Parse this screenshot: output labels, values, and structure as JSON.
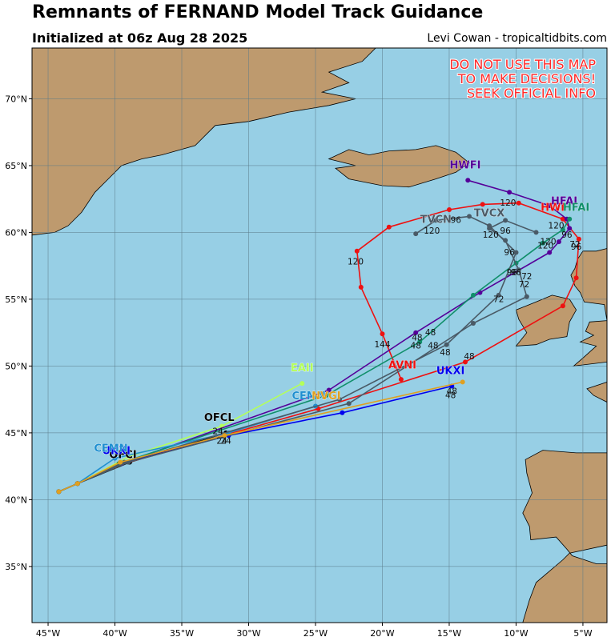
{
  "header": {
    "title": "Remnants of FERNAND Model Track Guidance",
    "subtitle": "Initialized at 06z Aug 28 2025",
    "credit": "Levi Cowan - tropicaltidbits.com"
  },
  "warning": {
    "lines": [
      "DO NOT USE THIS MAP",
      "TO MAKE DECISIONS!",
      "SEEK OFFICIAL INFO"
    ],
    "color": "#ff2a2a"
  },
  "colors": {
    "ocean": "#97cfe5",
    "land": "#be9a6e",
    "grid": "#5a7a88"
  },
  "chart_data": {
    "type": "map",
    "xlim": [
      -46.2,
      -3.2
    ],
    "ylim": [
      30.8,
      73.8
    ],
    "lon_ticks": [
      {
        "v": -45,
        "label": "45°W"
      },
      {
        "v": -40,
        "label": "40°W"
      },
      {
        "v": -35,
        "label": "35°W"
      },
      {
        "v": -30,
        "label": "30°W"
      },
      {
        "v": -25,
        "label": "25°W"
      },
      {
        "v": -20,
        "label": "20°W"
      },
      {
        "v": -15,
        "label": "15°W"
      },
      {
        "v": -10,
        "label": "10°W"
      },
      {
        "v": -5,
        "label": "5°W"
      }
    ],
    "lat_ticks": [
      {
        "v": 35,
        "label": "35°N"
      },
      {
        "v": 40,
        "label": "40°N"
      },
      {
        "v": 45,
        "label": "45°N"
      },
      {
        "v": 50,
        "label": "50°N"
      },
      {
        "v": 55,
        "label": "55°N"
      },
      {
        "v": 60,
        "label": "60°N"
      },
      {
        "v": 65,
        "label": "65°N"
      },
      {
        "v": 70,
        "label": "70°N"
      }
    ],
    "land": [
      {
        "name": "greenland",
        "points": [
          [
            -46.2,
            73.8
          ],
          [
            -20.5,
            73.8
          ],
          [
            -21.5,
            72.8
          ],
          [
            -24.0,
            72.0
          ],
          [
            -22.5,
            71.2
          ],
          [
            -24.5,
            70.5
          ],
          [
            -22.0,
            70.0
          ],
          [
            -24.0,
            69.5
          ],
          [
            -27.0,
            69.0
          ],
          [
            -30.0,
            68.3
          ],
          [
            -32.5,
            68.0
          ],
          [
            -34.0,
            66.5
          ],
          [
            -36.5,
            65.8
          ],
          [
            -38.0,
            65.5
          ],
          [
            -39.5,
            65.0
          ],
          [
            -40.5,
            64.0
          ],
          [
            -41.5,
            63.0
          ],
          [
            -42.5,
            61.5
          ],
          [
            -43.5,
            60.5
          ],
          [
            -44.5,
            60.0
          ],
          [
            -46.2,
            59.8
          ]
        ]
      },
      {
        "name": "iceland",
        "points": [
          [
            -24.0,
            65.5
          ],
          [
            -22.5,
            66.2
          ],
          [
            -21.0,
            65.8
          ],
          [
            -19.5,
            66.1
          ],
          [
            -17.5,
            66.2
          ],
          [
            -16.0,
            66.5
          ],
          [
            -14.5,
            66.0
          ],
          [
            -13.5,
            65.2
          ],
          [
            -14.5,
            64.5
          ],
          [
            -16.0,
            64.0
          ],
          [
            -18.0,
            63.4
          ],
          [
            -20.0,
            63.5
          ],
          [
            -21.5,
            63.8
          ],
          [
            -22.5,
            64.0
          ],
          [
            -23.5,
            64.8
          ],
          [
            -22.0,
            65.0
          ]
        ]
      },
      {
        "name": "ireland",
        "points": [
          [
            -10.0,
            51.5
          ],
          [
            -9.2,
            52.5
          ],
          [
            -9.8,
            53.5
          ],
          [
            -10.0,
            54.2
          ],
          [
            -8.5,
            54.8
          ],
          [
            -7.3,
            55.3
          ],
          [
            -6.0,
            55.0
          ],
          [
            -5.5,
            54.2
          ],
          [
            -6.0,
            53.3
          ],
          [
            -6.2,
            52.2
          ],
          [
            -7.5,
            52.0
          ],
          [
            -8.5,
            51.6
          ]
        ]
      },
      {
        "name": "britain",
        "points": [
          [
            -5.7,
            50.0
          ],
          [
            -3.2,
            50.3
          ],
          [
            -3.2,
            58.8
          ],
          [
            -4.0,
            58.6
          ],
          [
            -5.0,
            58.6
          ],
          [
            -5.4,
            58.0
          ],
          [
            -5.6,
            57.3
          ],
          [
            -5.9,
            56.8
          ],
          [
            -5.6,
            56.0
          ],
          [
            -5.2,
            55.5
          ],
          [
            -4.9,
            54.8
          ],
          [
            -3.4,
            54.6
          ],
          [
            -3.2,
            53.4
          ],
          [
            -4.5,
            53.3
          ],
          [
            -4.8,
            52.6
          ],
          [
            -4.2,
            52.3
          ],
          [
            -5.2,
            51.8
          ],
          [
            -4.0,
            51.5
          ],
          [
            -5.0,
            50.6
          ]
        ]
      },
      {
        "name": "iberia",
        "points": [
          [
            -9.5,
            30.8
          ],
          [
            -9.0,
            32.5
          ],
          [
            -8.5,
            33.8
          ],
          [
            -6.5,
            35.5
          ],
          [
            -6.0,
            36.0
          ],
          [
            -3.2,
            36.6
          ],
          [
            -3.2,
            43.5
          ],
          [
            -5.5,
            43.5
          ],
          [
            -8.0,
            43.7
          ],
          [
            -9.3,
            43.0
          ],
          [
            -9.2,
            42.0
          ],
          [
            -8.8,
            40.5
          ],
          [
            -9.5,
            39.0
          ],
          [
            -9.0,
            38.0
          ],
          [
            -8.9,
            37.0
          ],
          [
            -7.0,
            37.2
          ],
          [
            -6.2,
            36.3
          ],
          [
            -5.8,
            35.8
          ],
          [
            -4.0,
            35.2
          ],
          [
            -3.2,
            35.2
          ],
          [
            -3.2,
            30.8
          ]
        ]
      },
      {
        "name": "france",
        "points": [
          [
            -4.7,
            48.3
          ],
          [
            -3.2,
            48.8
          ],
          [
            -3.2,
            47.3
          ],
          [
            -4.2,
            47.8
          ]
        ]
      }
    ],
    "models": [
      {
        "name": "OFCL",
        "color": "#000000",
        "points": [
          [
            -44.2,
            40.6
          ],
          [
            -42.8,
            41.2
          ],
          [
            -38.9,
            42.8
          ],
          [
            -31.7,
            45.0
          ]
        ]
      },
      {
        "name": "AVNI",
        "color": "#ee1111",
        "points": [
          [
            -44.2,
            40.6
          ],
          [
            -42.8,
            41.2
          ],
          [
            -40.0,
            42.5
          ],
          [
            -24.8,
            46.8
          ],
          [
            -13.8,
            50.3
          ],
          [
            -6.5,
            54.5
          ],
          [
            -5.5,
            56.6
          ],
          [
            -5.3,
            59.5
          ],
          [
            -6.5,
            61.0
          ],
          [
            -9.8,
            62.2
          ],
          [
            -12.5,
            62.1
          ],
          [
            -15.0,
            61.7
          ],
          [
            -19.5,
            60.4
          ],
          [
            -21.9,
            58.6
          ],
          [
            -21.6,
            55.9
          ],
          [
            -20.0,
            52.4
          ],
          [
            -18.6,
            49.0
          ]
        ]
      },
      {
        "name": "UKXI",
        "color": "#0000ee",
        "points": [
          [
            -44.2,
            40.6
          ],
          [
            -42.8,
            41.2
          ],
          [
            -39.5,
            42.7
          ],
          [
            -31.5,
            44.8
          ],
          [
            -23.0,
            46.5
          ],
          [
            -14.8,
            48.5
          ]
        ]
      },
      {
        "name": "EAII",
        "color": "#b4ff5a",
        "points": [
          [
            -44.2,
            40.6
          ],
          [
            -42.8,
            41.2
          ],
          [
            -39.0,
            43.2
          ],
          [
            -32.0,
            45.5
          ],
          [
            -26.0,
            48.7
          ]
        ]
      },
      {
        "name": "HWFI",
        "color": "#550099",
        "points": [
          [
            -44.2,
            40.6
          ],
          [
            -42.8,
            41.2
          ],
          [
            -39.5,
            42.7
          ],
          [
            -24.0,
            48.2
          ],
          [
            -17.5,
            52.5
          ],
          [
            -12.7,
            55.5
          ],
          [
            -7.5,
            58.5
          ],
          [
            -6.8,
            59.3
          ],
          [
            -6.0,
            60.3
          ],
          [
            -6.2,
            61.0
          ],
          [
            -7.5,
            62.0
          ],
          [
            -10.5,
            63.0
          ],
          [
            -13.6,
            63.9
          ]
        ]
      },
      {
        "name": "HFAI",
        "color": "#108f6a",
        "points": [
          [
            -44.2,
            40.6
          ],
          [
            -42.8,
            41.2
          ],
          [
            -39.7,
            42.7
          ],
          [
            -24.2,
            47.8
          ],
          [
            -17.2,
            51.8
          ],
          [
            -13.2,
            55.3
          ],
          [
            -10.0,
            57.7
          ],
          [
            -8.0,
            59.2
          ],
          [
            -6.5,
            60.2
          ],
          [
            -6.0,
            61.0
          ]
        ]
      },
      {
        "name": "CEMN",
        "color": "#1f8fd0",
        "points": [
          [
            -44.2,
            40.6
          ],
          [
            -42.8,
            41.2
          ],
          [
            -40.0,
            43.1
          ],
          [
            -31.5,
            45.0
          ],
          [
            -25.0,
            47.0
          ]
        ]
      },
      {
        "name": "TVCN",
        "color": "#4a5a66",
        "points": [
          [
            -44.2,
            40.6
          ],
          [
            -42.8,
            41.2
          ],
          [
            -39.3,
            42.8
          ],
          [
            -23.2,
            47.5
          ],
          [
            -15.2,
            51.6
          ],
          [
            -11.3,
            55.3
          ],
          [
            -10.0,
            58.5
          ],
          [
            -12.0,
            60.5
          ],
          [
            -13.5,
            61.2
          ],
          [
            -16.0,
            60.9
          ],
          [
            -17.5,
            59.9
          ]
        ]
      },
      {
        "name": "TVCX",
        "color": "#4a5a66",
        "points": [
          [
            -44.2,
            40.6
          ],
          [
            -42.8,
            41.2
          ],
          [
            -39.0,
            42.8
          ],
          [
            -22.5,
            47.2
          ],
          [
            -13.2,
            53.2
          ],
          [
            -9.2,
            55.2
          ],
          [
            -9.8,
            57.2
          ],
          [
            -10.8,
            59.4
          ],
          [
            -12.0,
            60.3
          ],
          [
            -10.8,
            60.9
          ],
          [
            -8.5,
            60.0
          ]
        ]
      },
      {
        "name": "NVGI",
        "color": "#e0a020",
        "points": [
          [
            -44.2,
            40.6
          ],
          [
            -42.8,
            41.2
          ],
          [
            -39.6,
            42.8
          ],
          [
            -31.8,
            44.8
          ],
          [
            -14.0,
            48.8
          ]
        ]
      }
    ],
    "labels": [
      {
        "text": "OFCL",
        "lon": -32.2,
        "lat": 45.9,
        "color": "#000000"
      },
      {
        "text": "OFCI",
        "lon": -39.4,
        "lat": 43.1,
        "color": "#000000"
      },
      {
        "text": "UKXI",
        "lon": -39.9,
        "lat": 43.4,
        "color": "#0000ee"
      },
      {
        "text": "CEMN",
        "lon": -40.3,
        "lat": 43.6,
        "color": "#1f8fd0"
      },
      {
        "text": "EAII",
        "lon": -26.0,
        "lat": 49.6,
        "color": "#b4ff5a"
      },
      {
        "text": "CEMN",
        "lon": -25.5,
        "lat": 47.5,
        "color": "#1f8fd0"
      },
      {
        "text": "NVGI",
        "lon": -24.2,
        "lat": 47.5,
        "color": "#e0a020"
      },
      {
        "text": "AVNI",
        "lon": -18.5,
        "lat": 49.8,
        "color": "#ee1111"
      },
      {
        "text": "UKXI",
        "lon": -14.9,
        "lat": 49.4,
        "color": "#0000ee"
      },
      {
        "text": "HWFI",
        "lon": -13.8,
        "lat": 64.8,
        "color": "#550099"
      },
      {
        "text": "TVCN",
        "lon": -16.0,
        "lat": 60.7,
        "color": "#4a5a66"
      },
      {
        "text": "TVCX",
        "lon": -12.0,
        "lat": 61.2,
        "color": "#4a5a66"
      },
      {
        "text": "HWFI",
        "lon": -7.0,
        "lat": 61.6,
        "color": "#ee1111"
      },
      {
        "text": "HFAI",
        "lon": -6.4,
        "lat": 62.1,
        "color": "#550099"
      },
      {
        "text": "HFAI",
        "lon": -5.5,
        "lat": 61.6,
        "color": "#108f6a"
      }
    ],
    "hour_labels": [
      {
        "text": "24",
        "lon": -32.3,
        "lat": 44.9
      },
      {
        "text": "24",
        "lon": -32.0,
        "lat": 44.2
      },
      {
        "text": "24",
        "lon": -31.7,
        "lat": 44.2
      },
      {
        "text": "48",
        "lon": -15.3,
        "lat": 50.8
      },
      {
        "text": "48",
        "lon": -16.2,
        "lat": 51.3
      },
      {
        "text": "48",
        "lon": -17.5,
        "lat": 51.3
      },
      {
        "text": "48",
        "lon": -17.4,
        "lat": 51.9
      },
      {
        "text": "48",
        "lon": -16.4,
        "lat": 52.3
      },
      {
        "text": "48",
        "lon": -13.5,
        "lat": 50.5
      },
      {
        "text": "48",
        "lon": -14.8,
        "lat": 47.9
      },
      {
        "text": "48",
        "lon": -14.9,
        "lat": 47.6
      },
      {
        "text": "72",
        "lon": -11.3,
        "lat": 54.8
      },
      {
        "text": "72",
        "lon": -9.2,
        "lat": 56.5
      },
      {
        "text": "72",
        "lon": -9.4,
        "lat": 55.9
      },
      {
        "text": "72",
        "lon": -5.6,
        "lat": 58.9
      },
      {
        "text": "96",
        "lon": -10.3,
        "lat": 56.8
      },
      {
        "text": "96",
        "lon": -10.0,
        "lat": 56.8
      },
      {
        "text": "96",
        "lon": -10.5,
        "lat": 58.3
      },
      {
        "text": "96",
        "lon": -10.8,
        "lat": 59.9
      },
      {
        "text": "96",
        "lon": -14.5,
        "lat": 60.7
      },
      {
        "text": "96",
        "lon": -6.2,
        "lat": 59.6
      },
      {
        "text": "96",
        "lon": -5.5,
        "lat": 58.7
      },
      {
        "text": "120",
        "lon": -16.3,
        "lat": 59.9
      },
      {
        "text": "120",
        "lon": -11.9,
        "lat": 59.6
      },
      {
        "text": "120",
        "lon": -10.6,
        "lat": 62.0
      },
      {
        "text": "120",
        "lon": -7.0,
        "lat": 60.3
      },
      {
        "text": "120",
        "lon": -7.6,
        "lat": 59.1
      },
      {
        "text": "120",
        "lon": -7.8,
        "lat": 58.8
      },
      {
        "text": "120",
        "lon": -22.0,
        "lat": 57.6
      },
      {
        "text": "144",
        "lon": -20.0,
        "lat": 51.4
      }
    ]
  }
}
